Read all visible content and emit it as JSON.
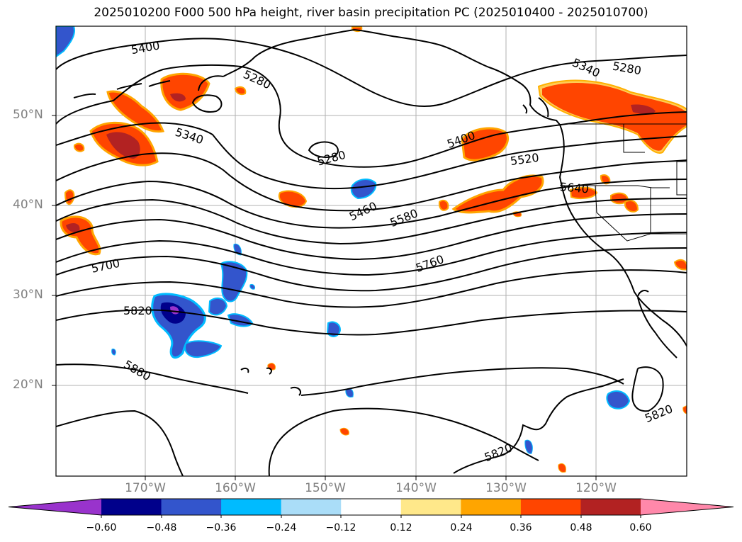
{
  "title": "2025010200 F000 500 hPa height, river basin precipitation PC (2025010400 - 2025010700)",
  "lat_labels": [
    "50°N",
    "40°N",
    "30°N",
    "20°N"
  ],
  "lon_labels": [
    "170°W",
    "160°W",
    "150°W",
    "140°W",
    "130°W",
    "120°W"
  ],
  "contour_labels": [
    "5400",
    "5280",
    "5340",
    "5280",
    "5340",
    "5280",
    "5400",
    "5520",
    "5460",
    "5580",
    "5640",
    "5700",
    "5760",
    "5820",
    "5880",
    "5820",
    "5820"
  ],
  "colorbar": {
    "ticks": [
      "−0.60",
      "−0.48",
      "−0.36",
      "−0.24",
      "−0.12",
      "0.12",
      "0.24",
      "0.36",
      "0.48",
      "0.60"
    ],
    "colors": [
      "#9933cc",
      "#00008b",
      "#3355cc",
      "#00bbff",
      "#aaddf8",
      "#ffffff",
      "#ffe88a",
      "#ffa500",
      "#ff4500",
      "#b22222",
      "#ff88aa"
    ]
  }
}
